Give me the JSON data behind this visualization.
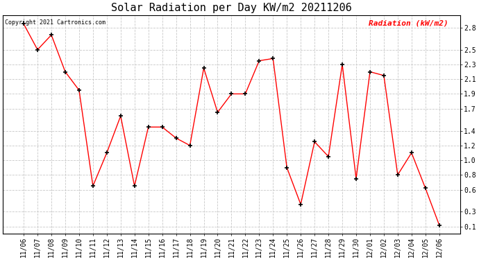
{
  "title": "Solar Radiation per Day KW/m2 20211206",
  "copyright_text": "Copyright 2021 Cartronics.com",
  "legend_label": "Radiation (kW/m2)",
  "dates": [
    "11/06",
    "11/07",
    "11/08",
    "11/09",
    "11/10",
    "11/11",
    "11/12",
    "11/13",
    "11/14",
    "11/15",
    "11/16",
    "11/17",
    "11/18",
    "11/19",
    "11/20",
    "11/21",
    "11/22",
    "11/23",
    "11/24",
    "11/25",
    "11/26",
    "11/27",
    "11/28",
    "11/29",
    "11/30",
    "12/01",
    "12/02",
    "12/03",
    "12/04",
    "12/05",
    "12/06"
  ],
  "values": [
    2.85,
    2.5,
    2.7,
    2.2,
    1.95,
    0.65,
    1.1,
    1.6,
    0.65,
    1.45,
    1.45,
    1.3,
    1.2,
    2.25,
    1.65,
    1.9,
    1.9,
    2.35,
    2.38,
    0.9,
    0.4,
    1.25,
    1.05,
    2.3,
    0.75,
    2.2,
    2.15,
    0.8,
    1.1,
    0.62,
    0.12
  ],
  "y_ticks": [
    0.1,
    0.3,
    0.6,
    0.8,
    1.0,
    1.2,
    1.4,
    1.7,
    1.9,
    2.1,
    2.3,
    2.5,
    2.8
  ],
  "ylim": [
    0.0,
    2.97
  ],
  "line_color": "#ff0000",
  "marker_color": "#000000",
  "background_color": "#ffffff",
  "grid_color": "#c8c8c8",
  "title_fontsize": 11,
  "copyright_fontsize": 6,
  "legend_fontsize": 8,
  "tick_fontsize": 7,
  "ylabel_color": "#ff0000"
}
